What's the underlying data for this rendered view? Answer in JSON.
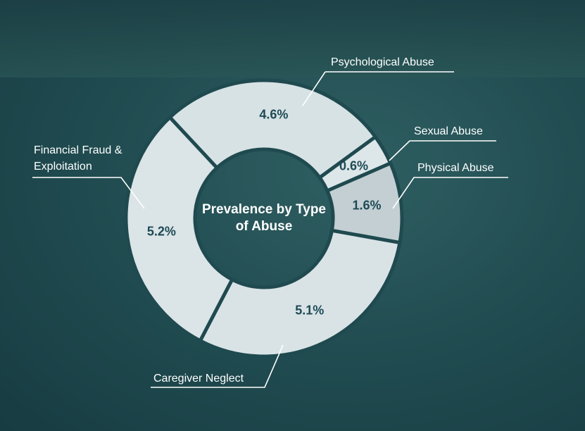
{
  "chart_data": {
    "type": "donut",
    "title": "Prevalence by Type of Abuse",
    "categories": [
      "Psychological Abuse",
      "Sexual Abuse",
      "Physical Abuse",
      "Caregiver Neglect",
      "Financial Fraud & Exploitation"
    ],
    "values": [
      4.6,
      0.6,
      1.6,
      5.1,
      5.2
    ],
    "value_labels": [
      "4.6%",
      "0.6%",
      "1.6%",
      "5.1%",
      "5.2%"
    ],
    "colors": [
      "#d7e2e5",
      "#dde6e8",
      "#c3cfd2",
      "#d9e3e6",
      "#dbe4e7"
    ]
  }
}
